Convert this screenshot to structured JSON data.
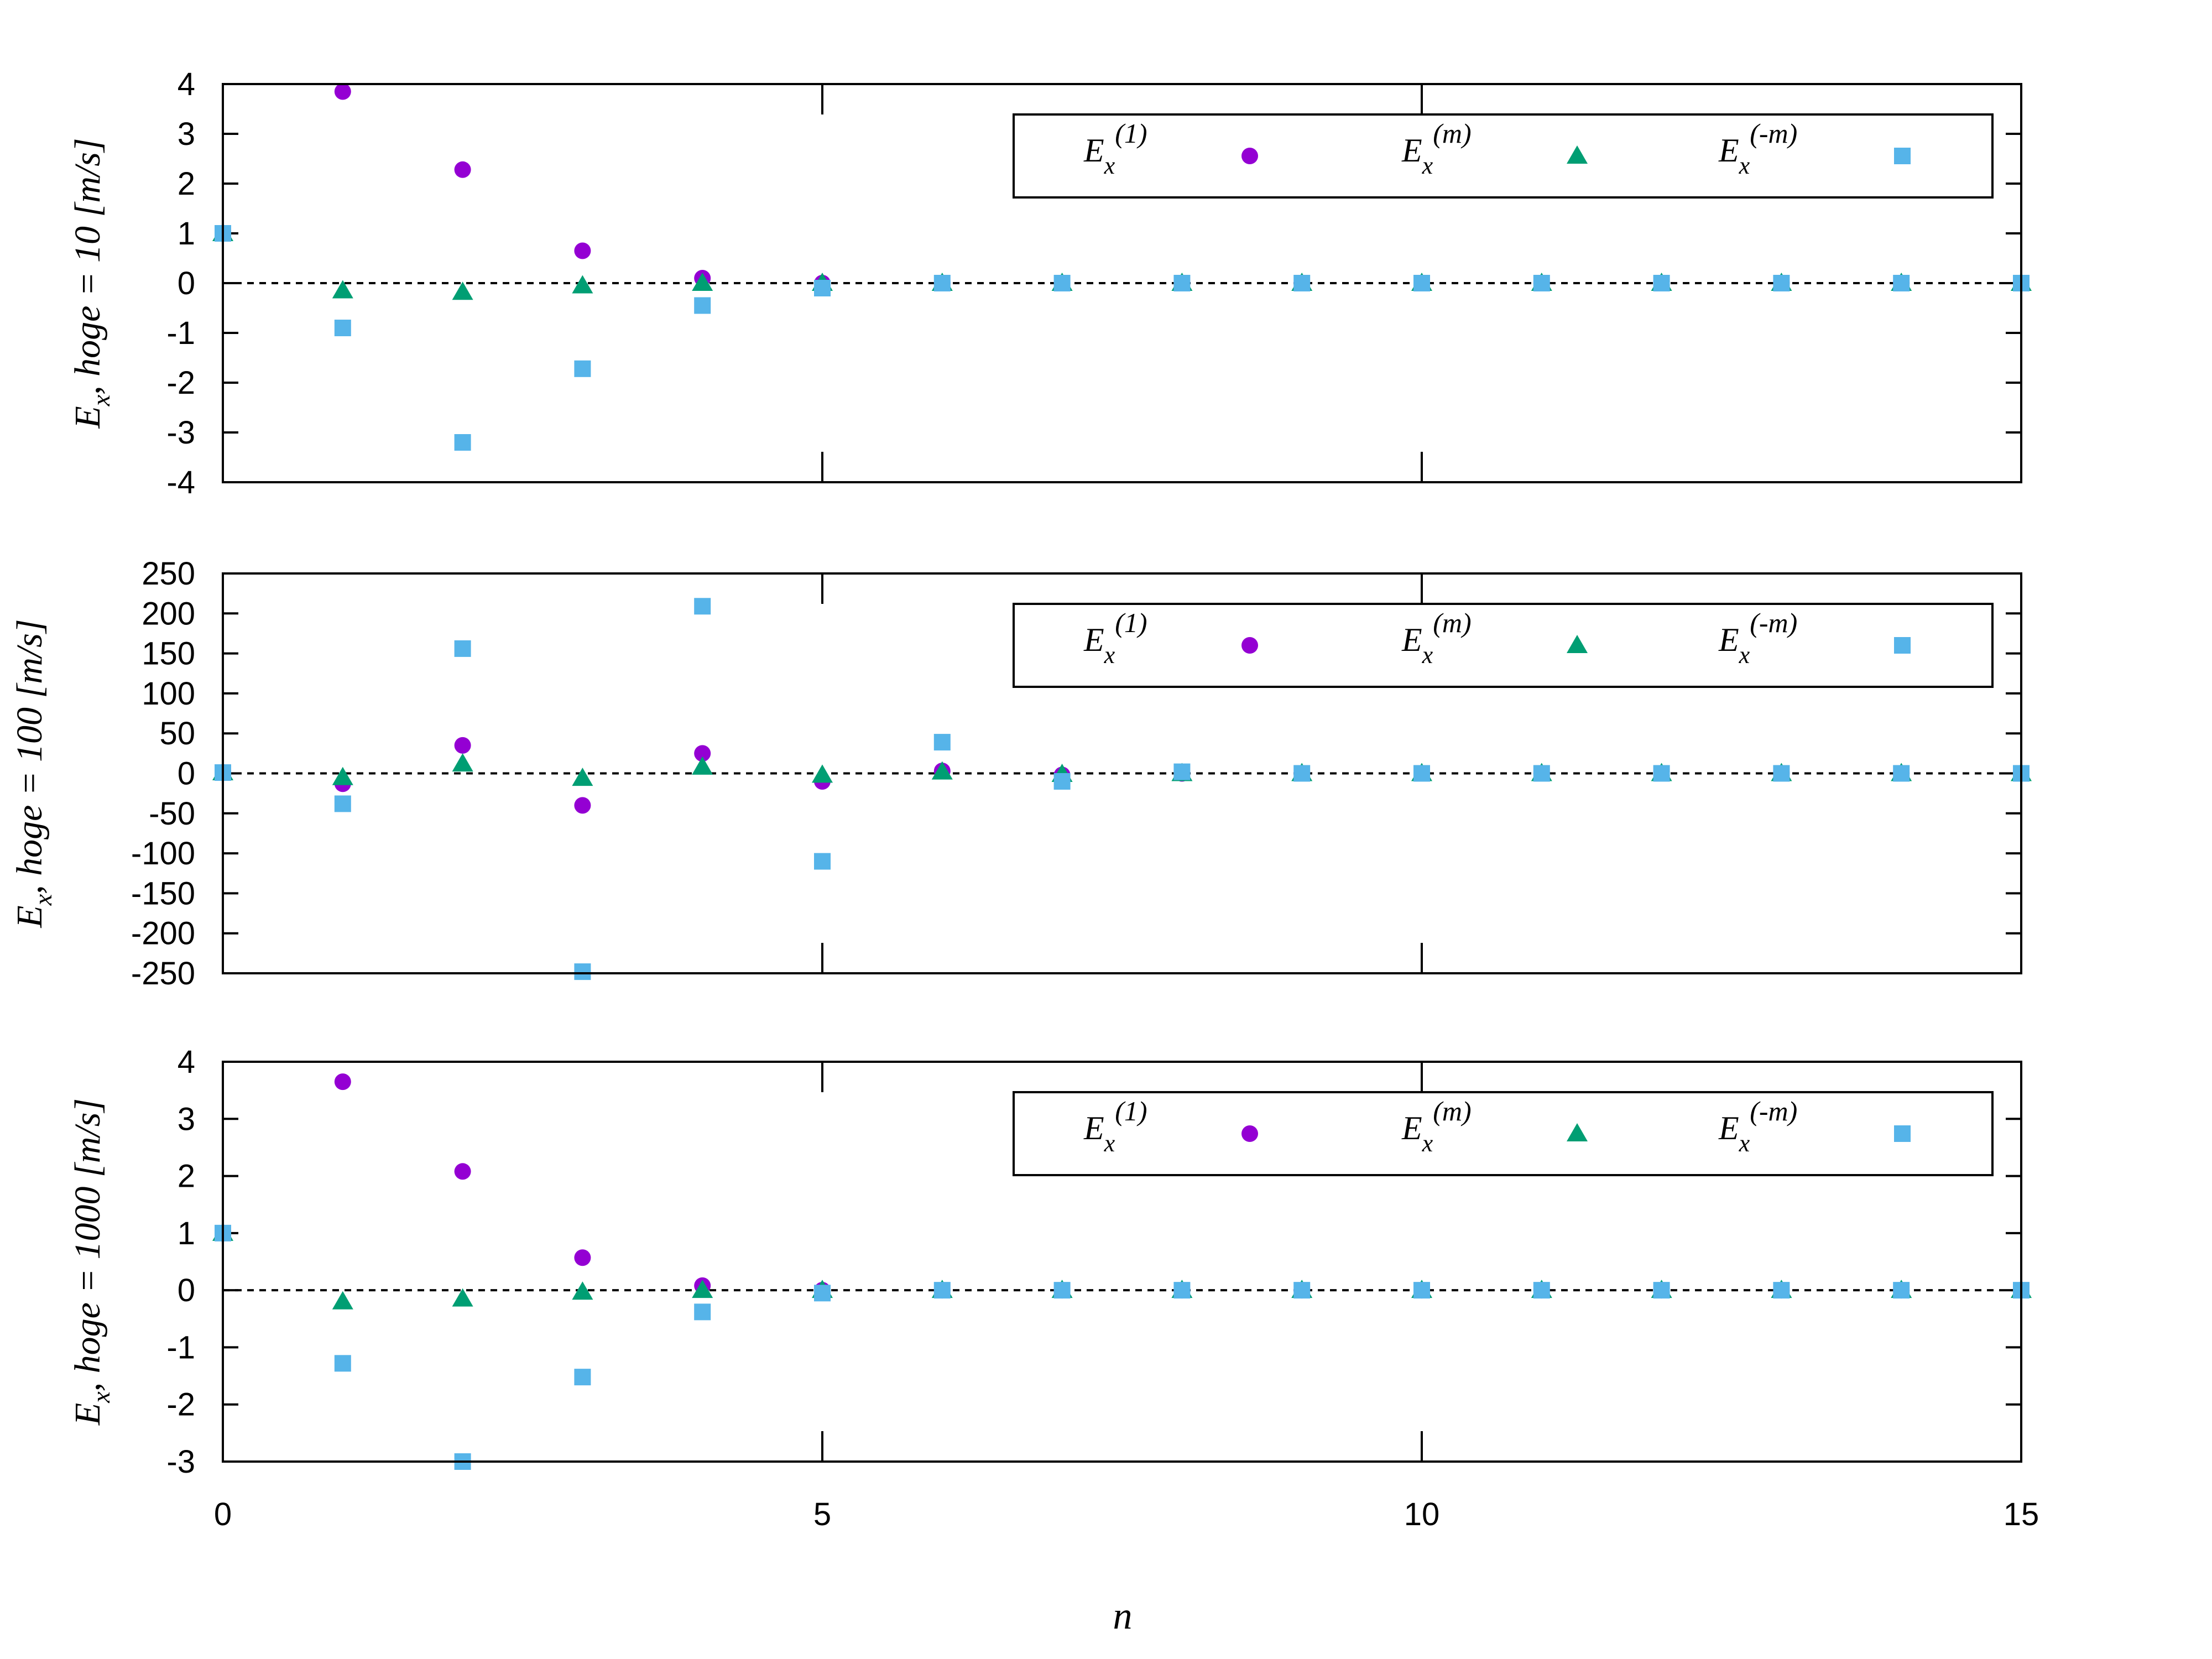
{
  "chart_data": [
    {
      "type": "scatter",
      "ylabel": {
        "main": "E",
        "sub": "x",
        "rest": ", hoge = 10 [m/s]"
      },
      "xlim": [
        0,
        15
      ],
      "ylim": [
        -4,
        4
      ],
      "yticks": [
        -4,
        -3,
        -2,
        -1,
        0,
        1,
        2,
        3,
        4
      ],
      "x": [
        0,
        1,
        2,
        3,
        4,
        5,
        6,
        7,
        8,
        9,
        10,
        11,
        12,
        13,
        14,
        15
      ],
      "series": [
        {
          "name": "E_x^(1)",
          "label_main": "E",
          "label_sub": "x",
          "label_sup": "(1)",
          "marker": "circle",
          "color": "#9400d3",
          "values": [
            1,
            3.85,
            2.28,
            0.65,
            0.1,
            0,
            0,
            0,
            0,
            0,
            0,
            0,
            0,
            0,
            0,
            0
          ]
        },
        {
          "name": "E_x^(m)",
          "label_main": "E",
          "label_sub": "x",
          "label_sup": "(m)",
          "marker": "triangle",
          "color": "#009e73",
          "values": [
            1,
            -0.15,
            -0.18,
            -0.05,
            0,
            0,
            0,
            0,
            0,
            0,
            0,
            0,
            0,
            0,
            0,
            0
          ]
        },
        {
          "name": "E_x^(-m)",
          "label_main": "E",
          "label_sub": "x",
          "label_sup": "(-m)",
          "marker": "square",
          "color": "#56b4e9",
          "values": [
            1,
            -0.9,
            -3.2,
            -1.72,
            -0.45,
            -0.1,
            0,
            0,
            0,
            0,
            0,
            0,
            0,
            0,
            0,
            0
          ]
        }
      ]
    },
    {
      "type": "scatter",
      "ylabel": {
        "main": "E",
        "sub": "x",
        "rest": ", hoge = 100 [m/s]"
      },
      "xlim": [
        0,
        15
      ],
      "ylim": [
        -250,
        250
      ],
      "yticks": [
        -250,
        -200,
        -150,
        -100,
        -50,
        0,
        50,
        100,
        150,
        200,
        250
      ],
      "x": [
        0,
        1,
        2,
        3,
        4,
        5,
        6,
        7,
        8,
        9,
        10,
        11,
        12,
        13,
        14,
        15
      ],
      "series": [
        {
          "name": "E_x^(1)",
          "label_main": "E",
          "label_sub": "x",
          "label_sup": "(1)",
          "marker": "circle",
          "color": "#9400d3",
          "values": [
            1,
            -13,
            35,
            -40,
            25,
            -10,
            3,
            -2,
            0,
            0,
            0,
            0,
            0,
            0,
            0,
            0
          ]
        },
        {
          "name": "E_x^(m)",
          "label_main": "E",
          "label_sub": "x",
          "label_sup": "(m)",
          "marker": "triangle",
          "color": "#009e73",
          "values": [
            1,
            -5,
            12,
            -6,
            8,
            -2,
            2,
            -1,
            0,
            0,
            0,
            0,
            0,
            0,
            0,
            0
          ]
        },
        {
          "name": "E_x^(-m)",
          "label_main": "E",
          "label_sub": "x",
          "label_sup": "(-m)",
          "marker": "square",
          "color": "#56b4e9",
          "values": [
            1,
            -38,
            156,
            -248,
            209,
            -110,
            39,
            -10,
            2,
            0,
            0,
            0,
            0,
            0,
            0,
            0
          ]
        }
      ]
    },
    {
      "type": "scatter",
      "ylabel": {
        "main": "E",
        "sub": "x",
        "rest": ", hoge = 1000 [m/s]"
      },
      "xlim": [
        0,
        15
      ],
      "ylim": [
        -3,
        4
      ],
      "yticks": [
        -3,
        -2,
        -1,
        0,
        1,
        2,
        3,
        4
      ],
      "x": [
        0,
        1,
        2,
        3,
        4,
        5,
        6,
        7,
        8,
        9,
        10,
        11,
        12,
        13,
        14,
        15
      ],
      "series": [
        {
          "name": "E_x^(1)",
          "label_main": "E",
          "label_sub": "x",
          "label_sup": "(1)",
          "marker": "circle",
          "color": "#9400d3",
          "values": [
            1,
            3.65,
            2.08,
            0.57,
            0.08,
            0,
            0,
            0,
            0,
            0,
            0,
            0,
            0,
            0,
            0,
            0
          ]
        },
        {
          "name": "E_x^(m)",
          "label_main": "E",
          "label_sub": "x",
          "label_sup": "(m)",
          "marker": "triangle",
          "color": "#009e73",
          "values": [
            1,
            -0.2,
            -0.15,
            -0.03,
            0,
            0,
            0,
            0,
            0,
            0,
            0,
            0,
            0,
            0,
            0,
            0
          ]
        },
        {
          "name": "E_x^(-m)",
          "label_main": "E",
          "label_sub": "x",
          "label_sup": "(-m)",
          "marker": "square",
          "color": "#56b4e9",
          "values": [
            1,
            -1.28,
            -3,
            -1.52,
            -0.38,
            -0.05,
            0,
            0,
            0,
            0,
            0,
            0,
            0,
            0,
            0,
            0
          ]
        }
      ]
    }
  ],
  "xticks": [
    0,
    5,
    10,
    15
  ],
  "xlabel": "n",
  "legend_position": "top-right",
  "zero_line": "dashed"
}
